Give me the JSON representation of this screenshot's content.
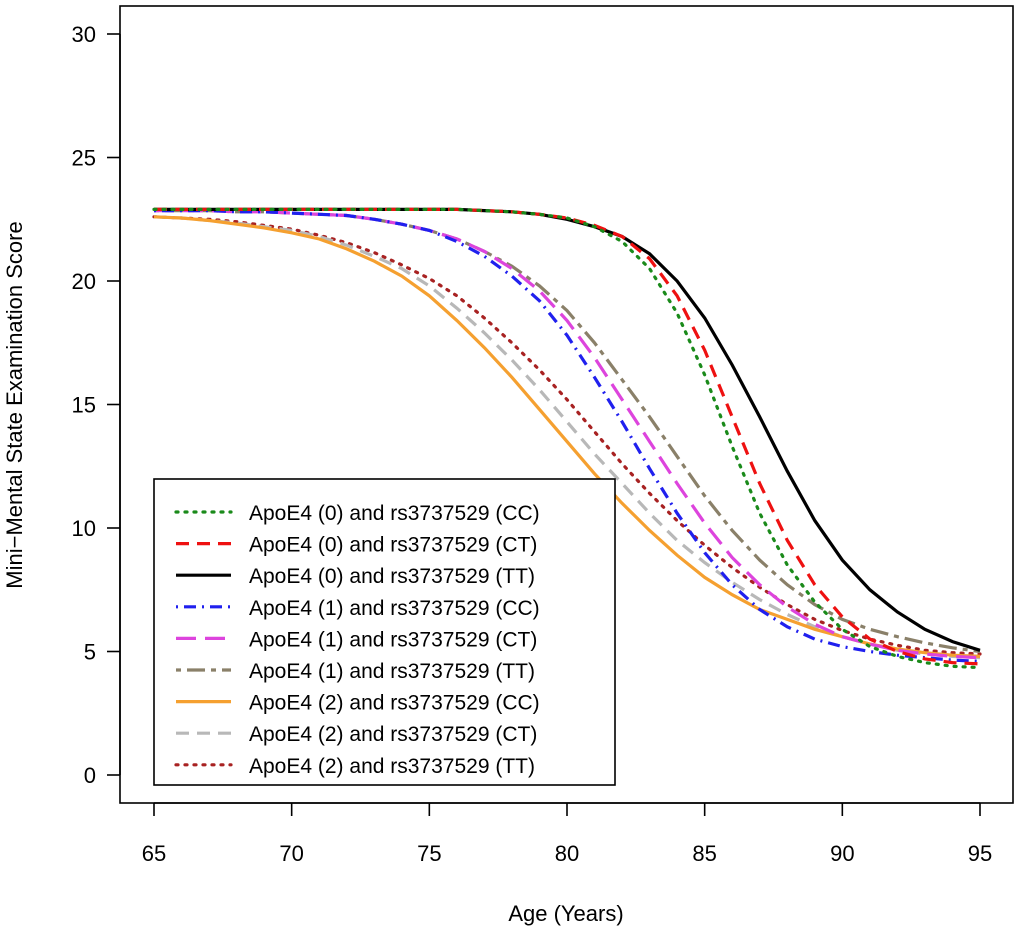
{
  "chart_data": {
    "type": "line",
    "title": "",
    "xlabel": "Age (Years)",
    "ylabel": "Mini−Mental State Examination Score",
    "xlim": [
      65,
      95
    ],
    "ylim": [
      0,
      30
    ],
    "x_ticks": [
      65,
      70,
      75,
      80,
      85,
      90,
      95
    ],
    "y_ticks": [
      0,
      5,
      10,
      15,
      20,
      25,
      30
    ],
    "grid": false,
    "legend_position": "bottom-left",
    "x": [
      65,
      66,
      67,
      68,
      69,
      70,
      71,
      72,
      73,
      74,
      75,
      76,
      77,
      78,
      79,
      80,
      81,
      82,
      83,
      84,
      85,
      86,
      87,
      88,
      89,
      90,
      91,
      92,
      93,
      94,
      95
    ],
    "series": [
      {
        "name": "ApoE4 (0) and rs3737529 (CC)",
        "color": "#1a8a1a",
        "dash": "dotted",
        "values": [
          22.9,
          22.9,
          22.9,
          22.9,
          22.9,
          22.9,
          22.9,
          22.9,
          22.9,
          22.9,
          22.9,
          22.9,
          22.85,
          22.8,
          22.7,
          22.55,
          22.2,
          21.6,
          20.5,
          18.7,
          16.2,
          13.3,
          10.6,
          8.5,
          7.0,
          5.9,
          5.2,
          4.8,
          4.55,
          4.4,
          4.35
        ]
      },
      {
        "name": "ApoE4 (0) and rs3737529 (CT)",
        "color": "#ee1111",
        "dash": "dashed",
        "values": [
          22.9,
          22.9,
          22.9,
          22.9,
          22.9,
          22.9,
          22.9,
          22.9,
          22.9,
          22.9,
          22.9,
          22.9,
          22.85,
          22.8,
          22.7,
          22.55,
          22.25,
          21.8,
          20.9,
          19.4,
          17.2,
          14.5,
          11.8,
          9.5,
          7.7,
          6.4,
          5.5,
          5.0,
          4.7,
          4.55,
          4.5
        ]
      },
      {
        "name": "ApoE4 (0) and rs3737529 (TT)",
        "color": "#000000",
        "dash": "solid",
        "values": [
          22.9,
          22.9,
          22.9,
          22.9,
          22.9,
          22.9,
          22.9,
          22.9,
          22.9,
          22.9,
          22.9,
          22.9,
          22.85,
          22.8,
          22.7,
          22.5,
          22.2,
          21.8,
          21.1,
          20.0,
          18.5,
          16.6,
          14.5,
          12.3,
          10.3,
          8.7,
          7.5,
          6.6,
          5.9,
          5.4,
          5.05
        ]
      },
      {
        "name": "ApoE4 (1) and rs3737529 (CC)",
        "color": "#2020ee",
        "dash": "dashdot",
        "values": [
          22.85,
          22.85,
          22.85,
          22.8,
          22.8,
          22.75,
          22.7,
          22.65,
          22.5,
          22.3,
          22.05,
          21.6,
          21.0,
          20.2,
          19.2,
          17.8,
          16.1,
          14.3,
          12.4,
          10.6,
          9.0,
          7.7,
          6.7,
          6.0,
          5.5,
          5.2,
          5.0,
          4.85,
          4.75,
          4.65,
          4.6
        ]
      },
      {
        "name": "ApoE4 (1) and rs3737529 (CT)",
        "color": "#dd44dd",
        "dash": "longdash",
        "values": [
          22.85,
          22.85,
          22.85,
          22.8,
          22.8,
          22.75,
          22.7,
          22.65,
          22.5,
          22.3,
          22.05,
          21.7,
          21.2,
          20.5,
          19.6,
          18.4,
          16.9,
          15.2,
          13.5,
          11.8,
          10.2,
          8.8,
          7.7,
          6.8,
          6.1,
          5.6,
          5.3,
          5.05,
          4.9,
          4.8,
          4.75
        ]
      },
      {
        "name": "ApoE4 (1) and rs3737529 (TT)",
        "color": "#8a8069",
        "dash": "twodash",
        "values": [
          22.85,
          22.85,
          22.85,
          22.8,
          22.8,
          22.75,
          22.7,
          22.65,
          22.5,
          22.3,
          22.05,
          21.7,
          21.2,
          20.6,
          19.8,
          18.8,
          17.5,
          16.0,
          14.5,
          12.9,
          11.3,
          9.9,
          8.7,
          7.7,
          6.9,
          6.3,
          5.9,
          5.6,
          5.35,
          5.15,
          5.0
        ]
      },
      {
        "name": "ApoE4 (2) and rs3737529 (CC)",
        "color": "#f5a030",
        "dash": "solid",
        "values": [
          22.6,
          22.55,
          22.45,
          22.3,
          22.15,
          21.95,
          21.7,
          21.3,
          20.8,
          20.2,
          19.4,
          18.4,
          17.3,
          16.1,
          14.8,
          13.5,
          12.2,
          11.0,
          9.9,
          8.9,
          8.0,
          7.3,
          6.7,
          6.3,
          5.9,
          5.6,
          5.3,
          5.1,
          4.95,
          4.85,
          4.8
        ]
      },
      {
        "name": "ApoE4 (2) and rs3737529 (CT)",
        "color": "#b8b8b8",
        "dash": "dashed",
        "values": [
          22.6,
          22.55,
          22.45,
          22.35,
          22.2,
          22.05,
          21.8,
          21.45,
          21.0,
          20.5,
          19.8,
          18.9,
          17.9,
          16.8,
          15.6,
          14.3,
          13.0,
          11.8,
          10.6,
          9.5,
          8.6,
          7.8,
          7.1,
          6.5,
          6.0,
          5.6,
          5.3,
          5.05,
          4.9,
          4.8,
          4.75
        ]
      },
      {
        "name": "ApoE4 (2) and rs3737529 (TT)",
        "color": "#a82222",
        "dash": "dotted",
        "values": [
          22.6,
          22.55,
          22.5,
          22.4,
          22.25,
          22.1,
          21.85,
          21.55,
          21.15,
          20.65,
          20.1,
          19.4,
          18.5,
          17.5,
          16.4,
          15.2,
          13.9,
          12.6,
          11.4,
          10.3,
          9.3,
          8.4,
          7.6,
          6.9,
          6.3,
          5.85,
          5.5,
          5.25,
          5.05,
          4.95,
          4.9
        ]
      }
    ]
  }
}
